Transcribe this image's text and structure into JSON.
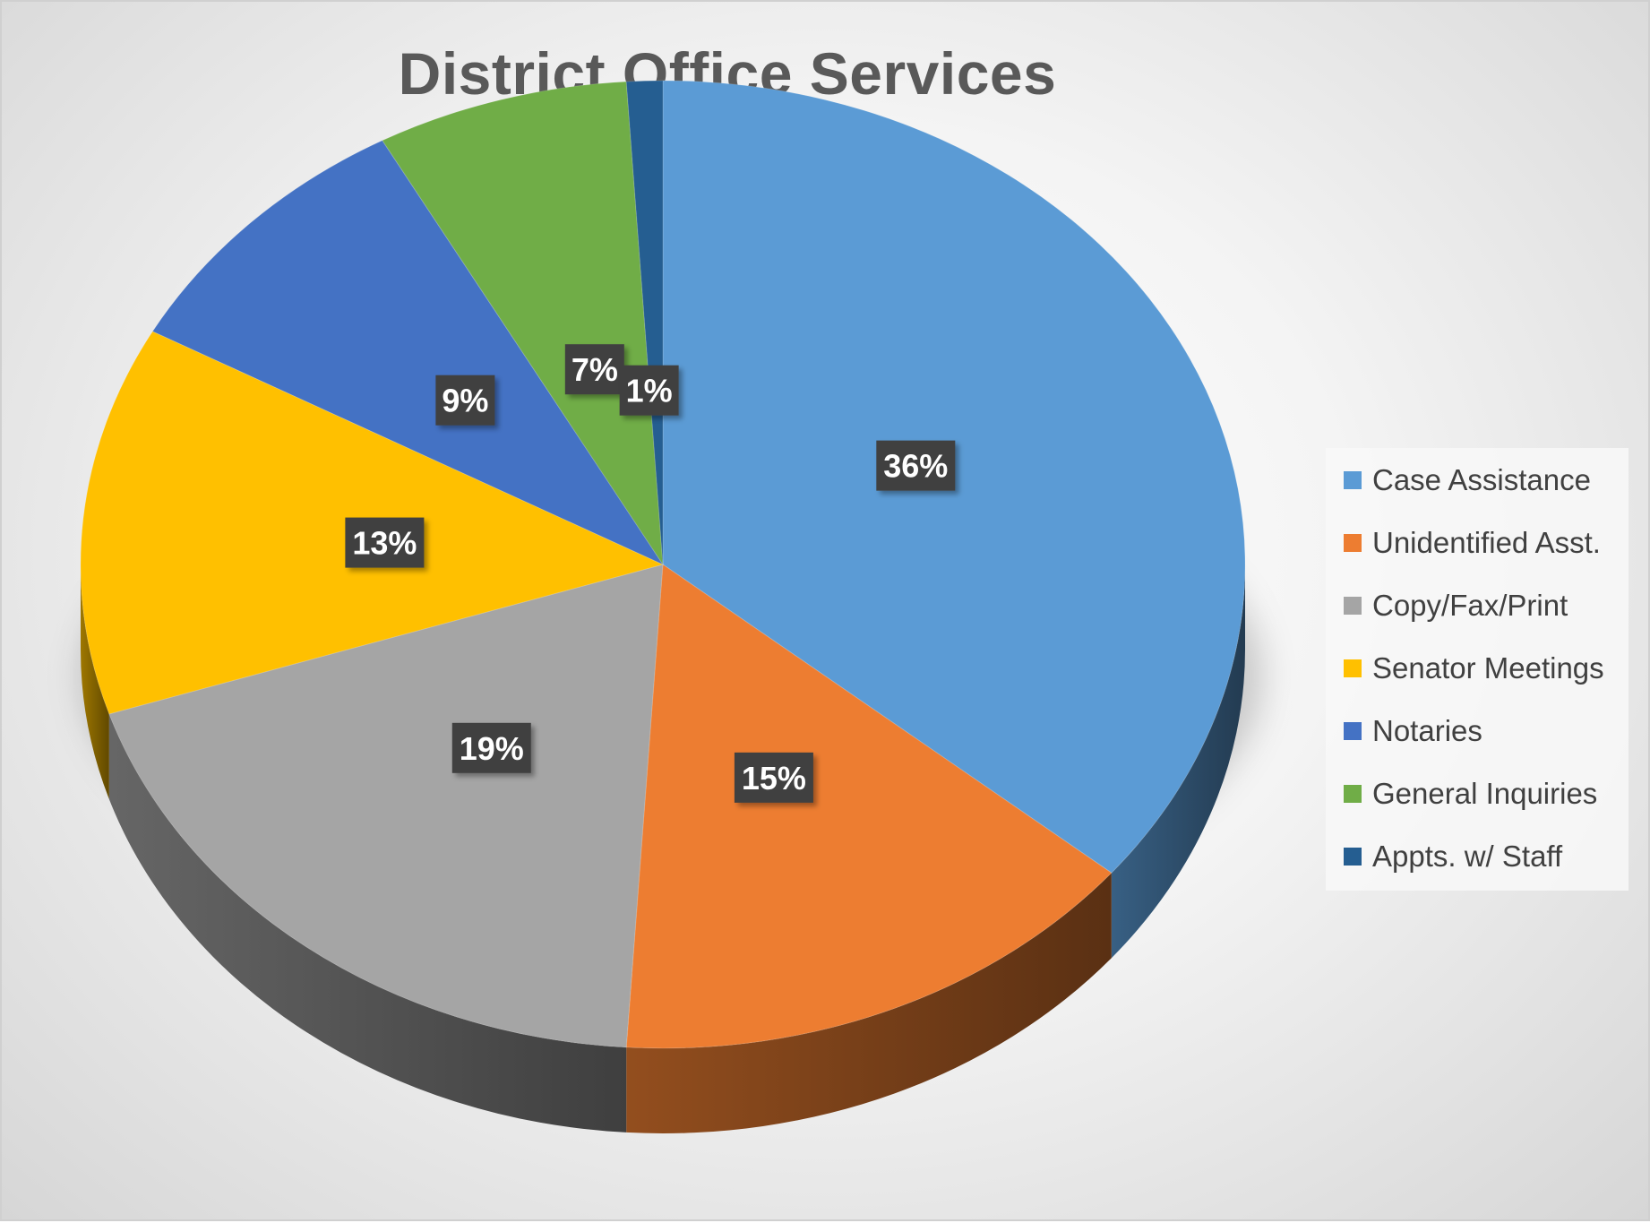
{
  "chart_data": {
    "type": "pie",
    "title": "District Office Services",
    "categories": [
      "Case Assistance",
      "Unidentified Asst.",
      "Copy/Fax/Print",
      "Senator Meetings",
      "Notaries",
      "General Inquiries",
      "Appts. w/ Staff"
    ],
    "values": [
      36,
      15,
      19,
      13,
      9,
      7,
      1
    ],
    "data_labels": [
      "36%",
      "15%",
      "19%",
      "13%",
      "9%",
      "7%",
      "1%"
    ],
    "colors": [
      "#5B9BD5",
      "#ED7D31",
      "#A5A5A5",
      "#FFC000",
      "#4472C4",
      "#70AD47",
      "#255E91"
    ],
    "legend_position": "right",
    "style": "3d"
  }
}
